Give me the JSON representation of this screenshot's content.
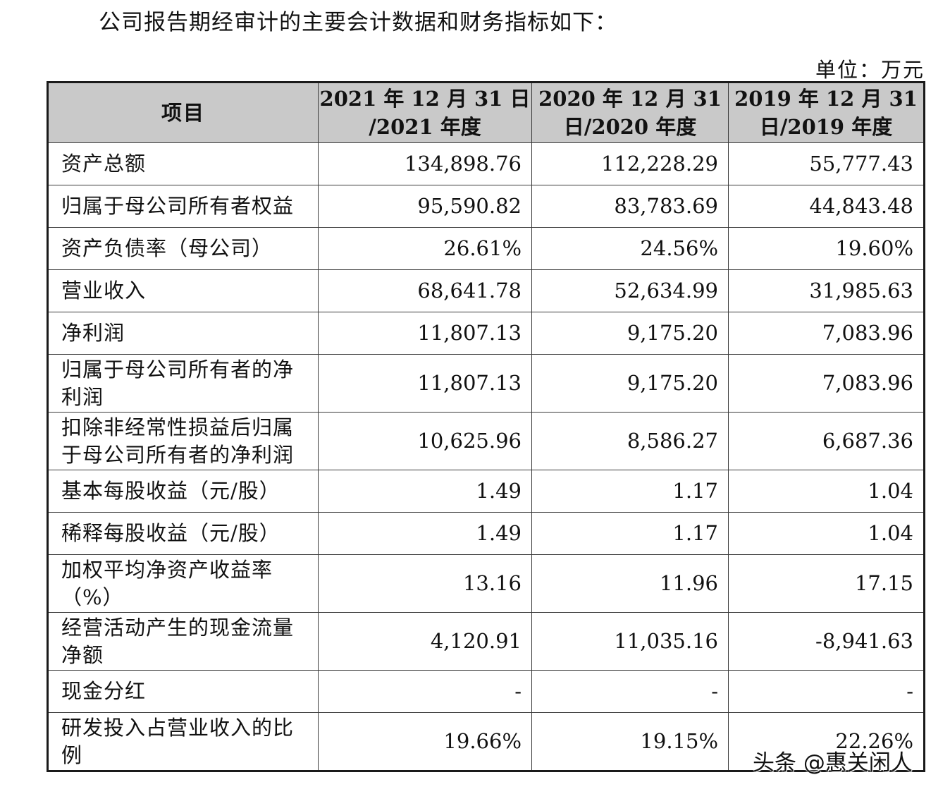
{
  "intro": "公司报告期经审计的主要会计数据和财务指标如下：",
  "unit": "单位：万元",
  "table": {
    "headers": [
      {
        "line1": "项目",
        "line2": ""
      },
      {
        "line1": "2021 年 12 月 31 日",
        "line2": "/2021 年度"
      },
      {
        "line1": "2020 年 12 月 31",
        "line2": "日/2020 年度"
      },
      {
        "line1": "2019 年 12 月 31",
        "line2": "日/2019 年度"
      }
    ],
    "rows": [
      {
        "line1": "资产总额",
        "line2": "",
        "v2021": "134,898.76",
        "v2020": "112,228.29",
        "v2019": "55,777.43"
      },
      {
        "line1": "归属于母公司所有者权益",
        "line2": "",
        "v2021": "95,590.82",
        "v2020": "83,783.69",
        "v2019": "44,843.48"
      },
      {
        "line1": "资产负债率（母公司）",
        "line2": "",
        "v2021": "26.61%",
        "v2020": "24.56%",
        "v2019": "19.60%"
      },
      {
        "line1": "营业收入",
        "line2": "",
        "v2021": "68,641.78",
        "v2020": "52,634.99",
        "v2019": "31,985.63"
      },
      {
        "line1": "净利润",
        "line2": "",
        "v2021": "11,807.13",
        "v2020": "9,175.20",
        "v2019": "7,083.96"
      },
      {
        "line1": "归属于母公司所有者的净",
        "line2": "利润",
        "v2021": "11,807.13",
        "v2020": "9,175.20",
        "v2019": "7,083.96"
      },
      {
        "line1": "扣除非经常性损益后归属",
        "line2": "于母公司所有者的净利润",
        "v2021": "10,625.96",
        "v2020": "8,586.27",
        "v2019": "6,687.36"
      },
      {
        "line1": "基本每股收益（元/股）",
        "line2": "",
        "v2021": "1.49",
        "v2020": "1.17",
        "v2019": "1.04"
      },
      {
        "line1": "稀释每股收益（元/股）",
        "line2": "",
        "v2021": "1.49",
        "v2020": "1.17",
        "v2019": "1.04"
      },
      {
        "line1": "加权平均净资产收益率",
        "line2": "（%）",
        "v2021": "13.16",
        "v2020": "11.96",
        "v2019": "17.15"
      },
      {
        "line1": "经营活动产生的现金流量",
        "line2": "净额",
        "v2021": "4,120.91",
        "v2020": "11,035.16",
        "v2019": "-8,941.63"
      },
      {
        "line1": "现金分红",
        "line2": "",
        "v2021": "-",
        "v2020": "-",
        "v2019": "-"
      },
      {
        "line1": "研发投入占营业收入的比",
        "line2": "例",
        "v2021": "19.66%",
        "v2020": "19.15%",
        "v2019": "22.26%"
      }
    ]
  },
  "watermark": "头条 @惠关闲人"
}
